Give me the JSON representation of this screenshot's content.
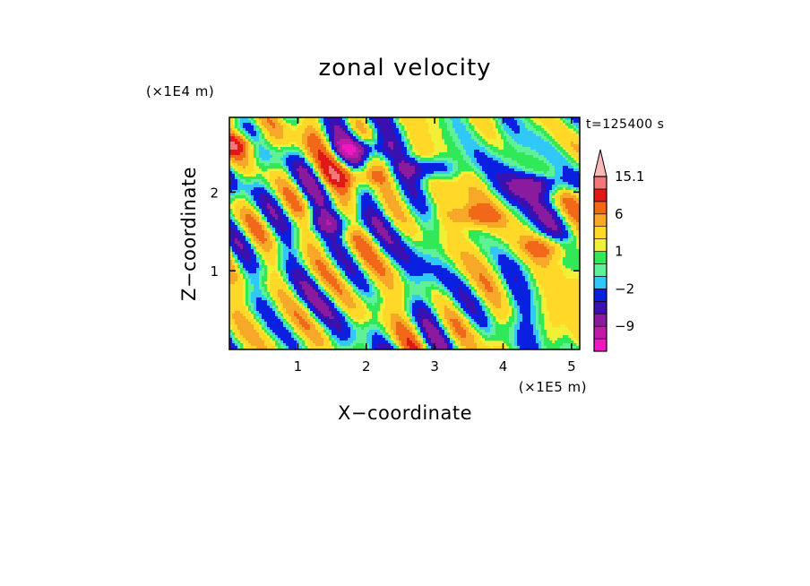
{
  "chart_data": {
    "type": "heatmap",
    "title": "zonal velocity",
    "xlabel": "X−coordinate",
    "ylabel": "Z−coordinate",
    "x_unit": "(×1E5 m)",
    "y_unit": "(×1E4 m)",
    "time_label": "t=125400 s",
    "xlim": [
      0,
      5.12
    ],
    "ylim": [
      0,
      2.95
    ],
    "x_ticks": [
      "1",
      "2",
      "3",
      "4",
      "5"
    ],
    "y_ticks": [
      "1",
      "2"
    ],
    "x_tick_values": [
      1,
      2,
      3,
      4,
      5
    ],
    "y_tick_values": [
      1,
      2
    ],
    "colorbar": {
      "levels": [
        -15,
        -12,
        -9,
        -6,
        -4,
        -2,
        -1,
        0,
        1,
        2,
        4,
        6,
        9,
        12,
        15.1
      ],
      "labels": [
        "15.1",
        "6",
        "1",
        "−2",
        "−9"
      ],
      "label_values": [
        15.1,
        6,
        1,
        -2,
        -9
      ],
      "colors_bottom_to_top": [
        "#f018c0",
        "#c01aa8",
        "#8a1a9e",
        "#3a10b0",
        "#0a20e0",
        "#30c8f8",
        "#60f098",
        "#30e858",
        "#f0f038",
        "#ffd828",
        "#f8a828",
        "#f06818",
        "#e01818",
        "#f07878",
        "#f8b8b8"
      ],
      "extend_max": true
    },
    "features": [
      {
        "x": 1.9,
        "z": 2.55,
        "value": -9
      },
      {
        "x": 1.9,
        "z": 2.2,
        "value": 7
      },
      {
        "x": 2.9,
        "z": 2.3,
        "value": -8
      },
      {
        "x": 0.05,
        "z": 2.6,
        "value": 8
      },
      {
        "x": 1.5,
        "z": 1.6,
        "value": -7
      },
      {
        "x": 4.7,
        "z": 1.3,
        "value": 6
      },
      {
        "x": 4.6,
        "z": 2.1,
        "value": -8
      },
      {
        "x": 3.6,
        "z": 1.7,
        "value": 6
      },
      {
        "x": 3.0,
        "z": 0.5,
        "value": -1
      },
      {
        "x": 0.8,
        "z": 0.6,
        "value": -1
      }
    ]
  }
}
